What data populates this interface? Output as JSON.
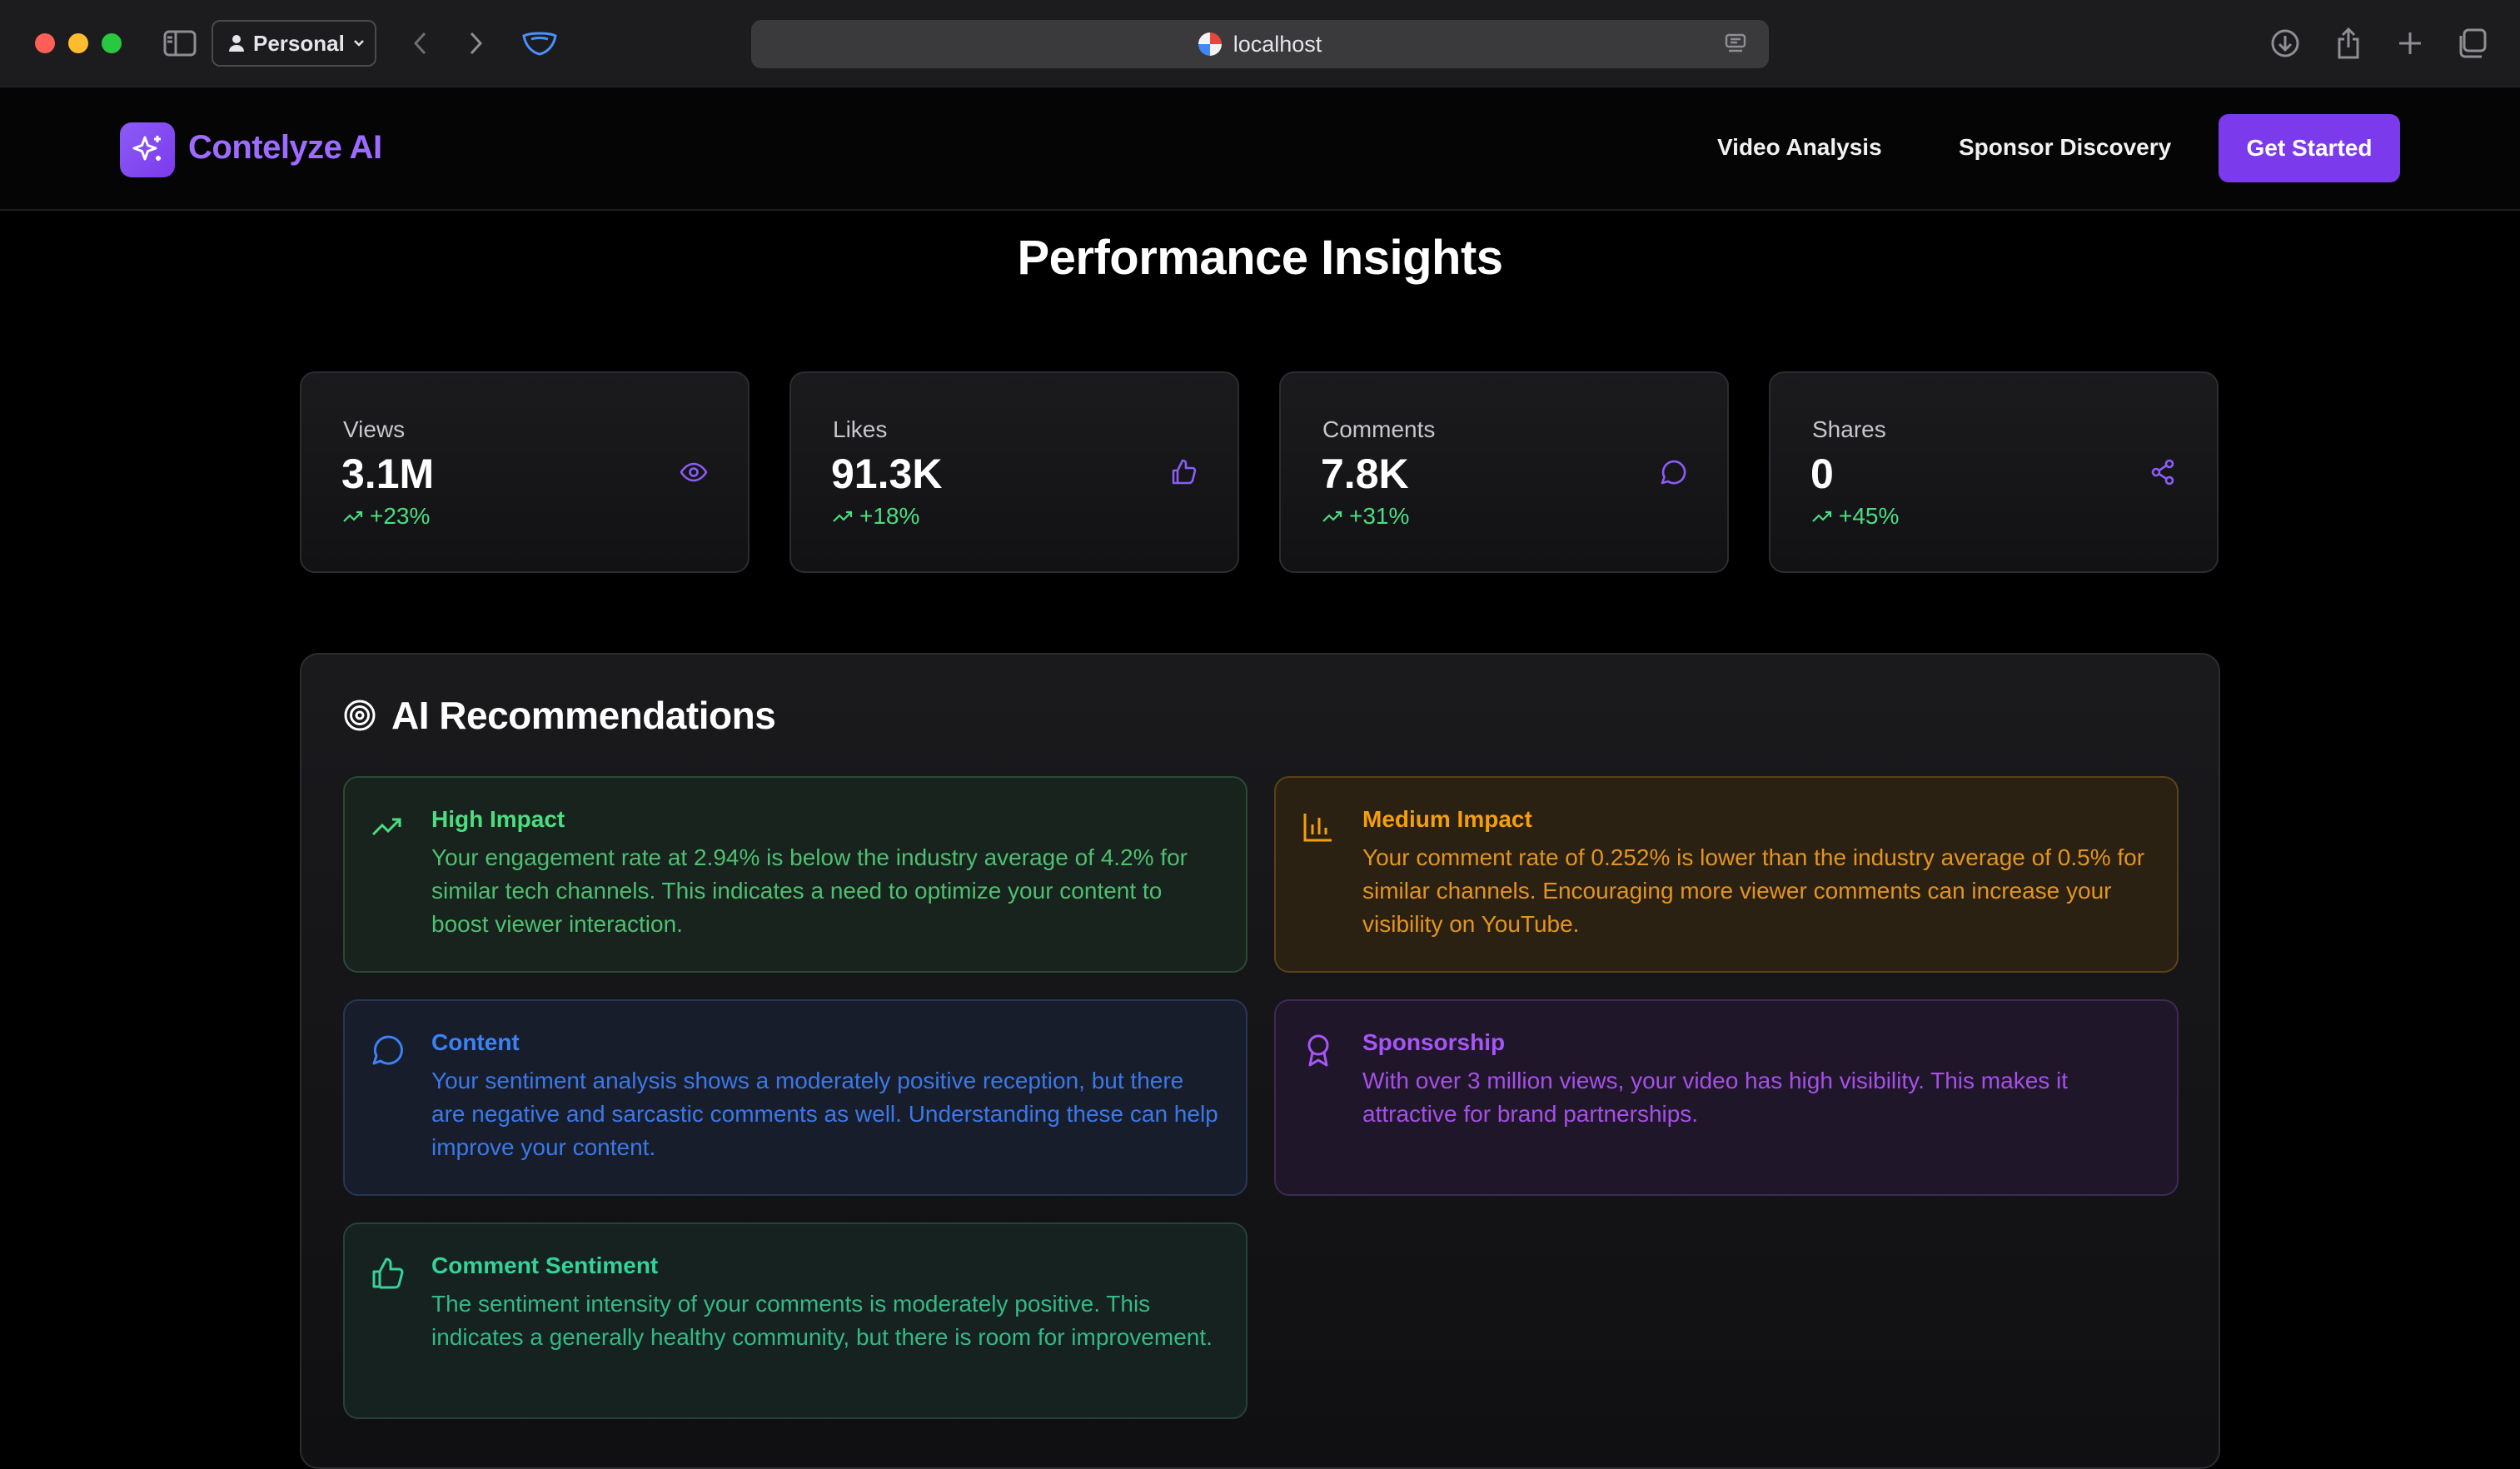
{
  "browser": {
    "profile": "Personal",
    "url": "localhost"
  },
  "site": {
    "brand": "Contelyze AI",
    "nav": [
      "Video Analysis",
      "Sponsor Discovery"
    ],
    "cta": "Get Started"
  },
  "page": {
    "title": "Performance Insights"
  },
  "stats": [
    {
      "label": "Views",
      "value": "3.1M",
      "change": "+23%",
      "icon": "eye-icon"
    },
    {
      "label": "Likes",
      "value": "91.3K",
      "change": "+18%",
      "icon": "thumbs-up-icon"
    },
    {
      "label": "Comments",
      "value": "7.8K",
      "change": "+31%",
      "icon": "comment-icon"
    },
    {
      "label": "Shares",
      "value": "0",
      "change": "+45%",
      "icon": "share-icon"
    }
  ],
  "recommendations": {
    "heading": "AI Recommendations",
    "items": [
      {
        "title": "High Impact",
        "text": "Your engagement rate at 2.94% is below the industry average of 4.2% for similar tech channels. This indicates a need to optimize your content to boost viewer interaction.",
        "icon": "trending-up-icon",
        "color": "#4ade80"
      },
      {
        "title": "Medium Impact",
        "text": "Your comment rate of 0.252% is lower than the industry average of 0.5% for similar channels. Encouraging more viewer comments can increase your visibility on YouTube.",
        "icon": "bar-chart-icon",
        "color": "#f59e0b"
      },
      {
        "title": "Content",
        "text": "Your sentiment analysis shows a moderately positive reception, but there are negative and sarcastic comments as well. Understanding these can help improve your content.",
        "icon": "comment-icon",
        "color": "#3b82f6"
      },
      {
        "title": "Sponsorship",
        "text": "With over 3 million views, your video has high visibility. This makes it attractive for brand partnerships.",
        "icon": "award-icon",
        "color": "#a855f7"
      },
      {
        "title": "Comment Sentiment",
        "text": "The sentiment intensity of your comments is moderately positive. This indicates a generally healthy community, but there is room for improvement.",
        "icon": "thumbs-up-icon",
        "color": "#34d399"
      }
    ]
  },
  "colors": {
    "accent": "#7c3aed",
    "positive": "#4ade80"
  }
}
